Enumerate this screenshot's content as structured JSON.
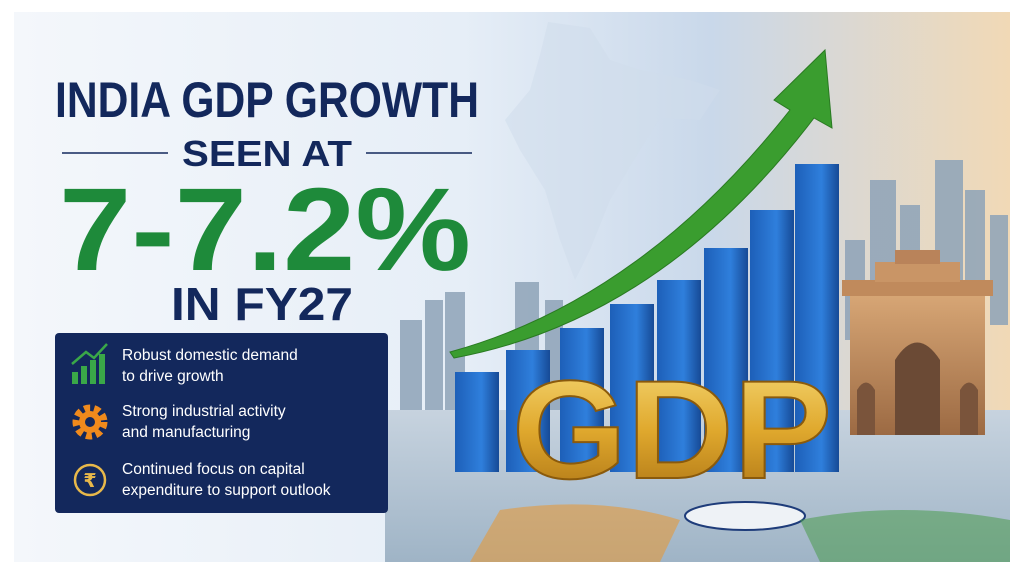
{
  "headline": {
    "line1": "INDIA GDP GROWTH",
    "line2": "SEEN AT",
    "figure": "7-7.2%",
    "line4": "IN FY27"
  },
  "points": [
    {
      "lines": [
        "Robust domestic demand",
        "to drive growth"
      ]
    },
    {
      "lines": [
        "Strong industrial activity",
        "and manufacturing"
      ]
    },
    {
      "icon_text": "₹",
      "lines": [
        "Continued focus on capital",
        "expenditure to support outlook"
      ]
    }
  ],
  "graphic_label": "GDP"
}
